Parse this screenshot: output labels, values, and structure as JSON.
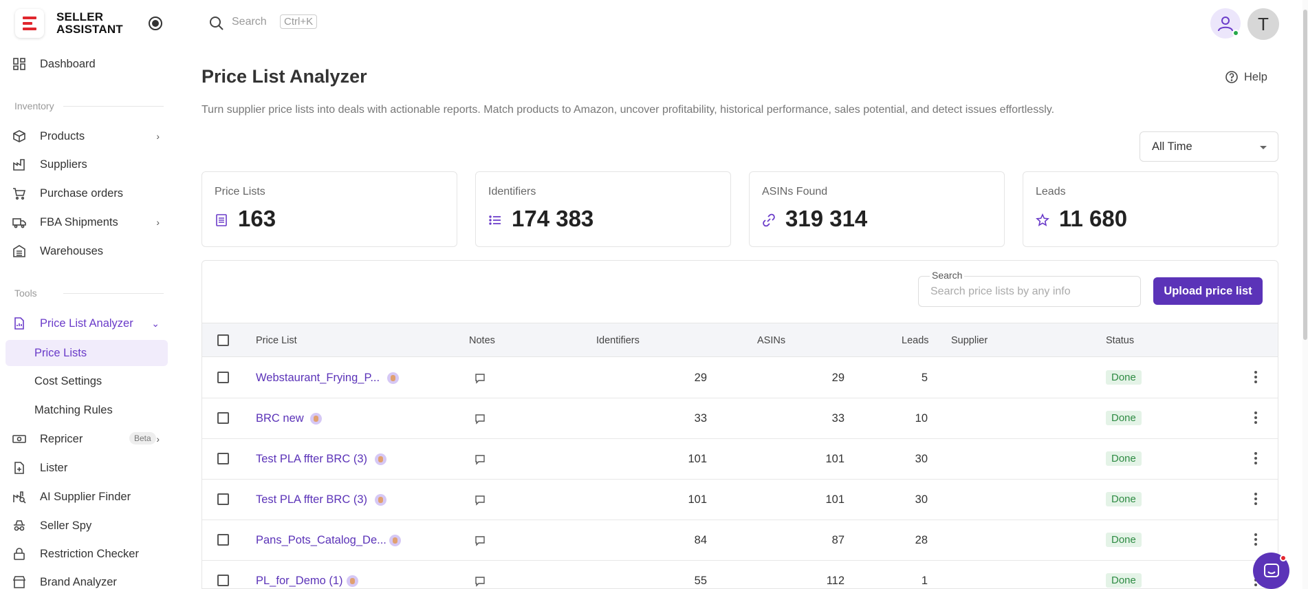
{
  "brand": {
    "line1": "SELLER",
    "line2": "ASSISTANT",
    "accent": "#e0262d"
  },
  "sidebar": {
    "dashboard": "Dashboard",
    "section_inventory": "Inventory",
    "products": "Products",
    "suppliers": "Suppliers",
    "purchase_orders": "Purchase orders",
    "fba_shipments": "FBA Shipments",
    "warehouses": "Warehouses",
    "section_tools": "Tools",
    "price_list_analyzer": "Price List Analyzer",
    "sub": {
      "price_lists": "Price Lists",
      "cost_settings": "Cost Settings",
      "matching_rules": "Matching Rules"
    },
    "repricer": "Repricer",
    "beta": "Beta",
    "lister": "Lister",
    "ai_supplier_finder": "AI Supplier Finder",
    "seller_spy": "Seller Spy",
    "restriction_checker": "Restriction Checker",
    "brand_analyzer": "Brand Analyzer"
  },
  "topbar": {
    "search_placeholder": "Search",
    "shortcut": "Ctrl+K",
    "avatar_letter": "T"
  },
  "page": {
    "title": "Price List Analyzer",
    "help": "Help",
    "description": "Turn supplier price lists into deals with actionable reports. Match products to Amazon, uncover profitability, historical performance, sales potential, and detect issues effortlessly.",
    "time_filter": "All Time"
  },
  "stats": {
    "price_lists": {
      "label": "Price Lists",
      "value": "163"
    },
    "identifiers": {
      "label": "Identifiers",
      "value": "174 383"
    },
    "asins_found": {
      "label": "ASINs Found",
      "value": "319 314"
    },
    "leads": {
      "label": "Leads",
      "value": "11 680"
    }
  },
  "table": {
    "search_label": "Search",
    "search_placeholder": "Search price lists by any info",
    "upload_button": "Upload price list",
    "columns": {
      "price_list": "Price List",
      "notes": "Notes",
      "identifiers": "Identifiers",
      "asins": "ASINs",
      "leads": "Leads",
      "supplier": "Supplier",
      "status": "Status"
    },
    "rows": [
      {
        "name": "Webstaurant_Frying_P...",
        "identifiers": "29",
        "asins": "29",
        "leads": "5",
        "supplier": "",
        "status": "Done"
      },
      {
        "name": "BRC new",
        "identifiers": "33",
        "asins": "33",
        "leads": "10",
        "supplier": "",
        "status": "Done"
      },
      {
        "name": "Test PLA ffter BRC (3)",
        "identifiers": "101",
        "asins": "101",
        "leads": "30",
        "supplier": "",
        "status": "Done"
      },
      {
        "name": "Test PLA ffter BRC (3)",
        "identifiers": "101",
        "asins": "101",
        "leads": "30",
        "supplier": "",
        "status": "Done"
      },
      {
        "name": "Pans_Pots_Catalog_De...",
        "identifiers": "84",
        "asins": "87",
        "leads": "28",
        "supplier": "",
        "status": "Done"
      },
      {
        "name": "PL_for_Demo (1)",
        "identifiers": "55",
        "asins": "112",
        "leads": "1",
        "supplier": "",
        "status": "Done"
      }
    ]
  },
  "colors": {
    "primary": "#5b33b8",
    "status_done_bg": "#e4f3e7",
    "status_done_text": "#2e8b43"
  }
}
